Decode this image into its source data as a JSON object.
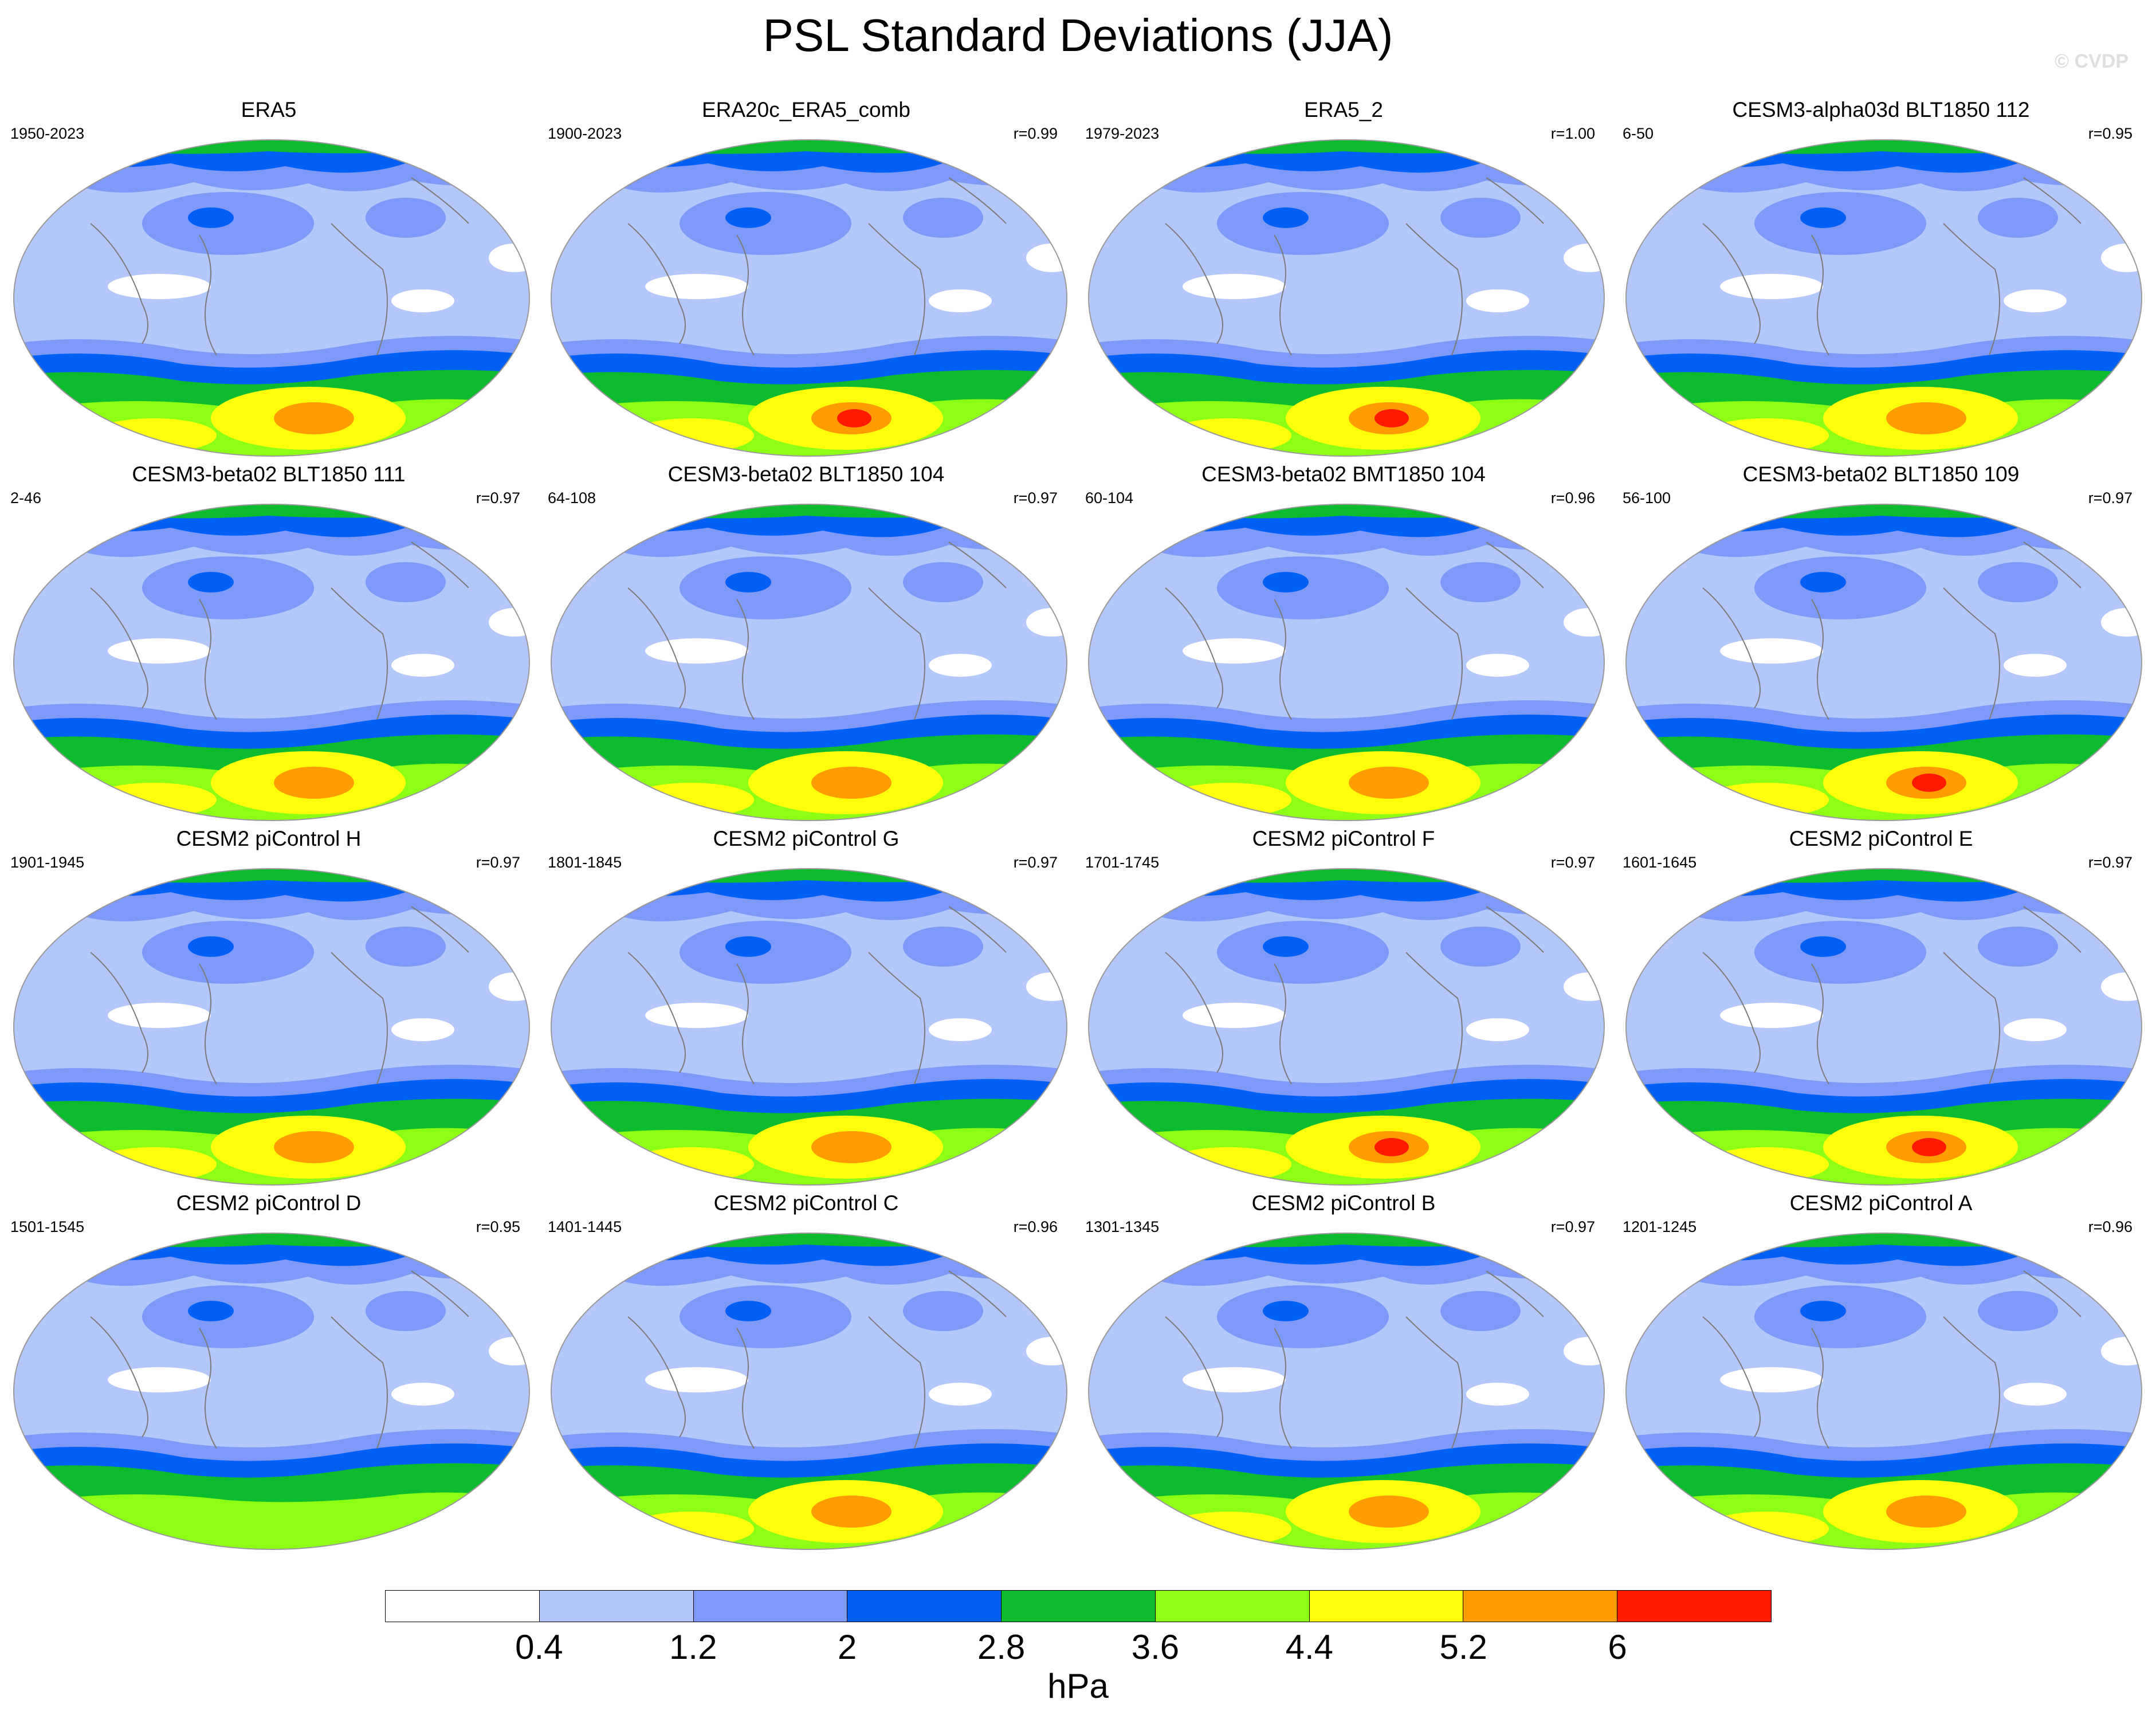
{
  "title": "PSL Standard Deviations (JJA)",
  "watermark": "© CVDP",
  "panels": [
    {
      "name": "ERA5",
      "years": "1950-2023",
      "r": "",
      "peak": 5
    },
    {
      "name": "ERA20c_ERA5_comb",
      "years": "1900-2023",
      "r": "r=0.99",
      "peak": 6
    },
    {
      "name": "ERA5_2",
      "years": "1979-2023",
      "r": "r=1.00",
      "peak": 6
    },
    {
      "name": "CESM3-alpha03d BLT1850 112",
      "years": "6-50",
      "r": "r=0.95",
      "peak": 5
    },
    {
      "name": "CESM3-beta02 BLT1850 111",
      "years": "2-46",
      "r": "r=0.97",
      "peak": 5
    },
    {
      "name": "CESM3-beta02 BLT1850 104",
      "years": "64-108",
      "r": "r=0.97",
      "peak": 5
    },
    {
      "name": "CESM3-beta02 BMT1850 104",
      "years": "60-104",
      "r": "r=0.96",
      "peak": 5
    },
    {
      "name": "CESM3-beta02 BLT1850 109",
      "years": "56-100",
      "r": "r=0.97",
      "peak": 6
    },
    {
      "name": "CESM2 piControl H",
      "years": "1901-1945",
      "r": "r=0.97",
      "peak": 5
    },
    {
      "name": "CESM2 piControl G",
      "years": "1801-1845",
      "r": "r=0.97",
      "peak": 5
    },
    {
      "name": "CESM2 piControl F",
      "years": "1701-1745",
      "r": "r=0.97",
      "peak": 6
    },
    {
      "name": "CESM2 piControl E",
      "years": "1601-1645",
      "r": "r=0.97",
      "peak": 6
    },
    {
      "name": "CESM2 piControl D",
      "years": "1501-1545",
      "r": "r=0.95",
      "peak": 4
    },
    {
      "name": "CESM2 piControl C",
      "years": "1401-1445",
      "r": "r=0.96",
      "peak": 5
    },
    {
      "name": "CESM2 piControl B",
      "years": "1301-1345",
      "r": "r=0.97",
      "peak": 5
    },
    {
      "name": "CESM2 piControl A",
      "years": "1201-1245",
      "r": "r=0.96",
      "peak": 5
    }
  ],
  "colorbar": {
    "colors": [
      "#ffffff",
      "#b4c7fa",
      "#7f99f8",
      "#0060f5",
      "#0dbb2e",
      "#8dff15",
      "#ffff0c",
      "#ff9c00",
      "#ff1a00"
    ],
    "ticks": [
      "0.4",
      "1.2",
      "2",
      "2.8",
      "3.6",
      "4.4",
      "5.2",
      "6"
    ],
    "units": "hPa"
  }
}
